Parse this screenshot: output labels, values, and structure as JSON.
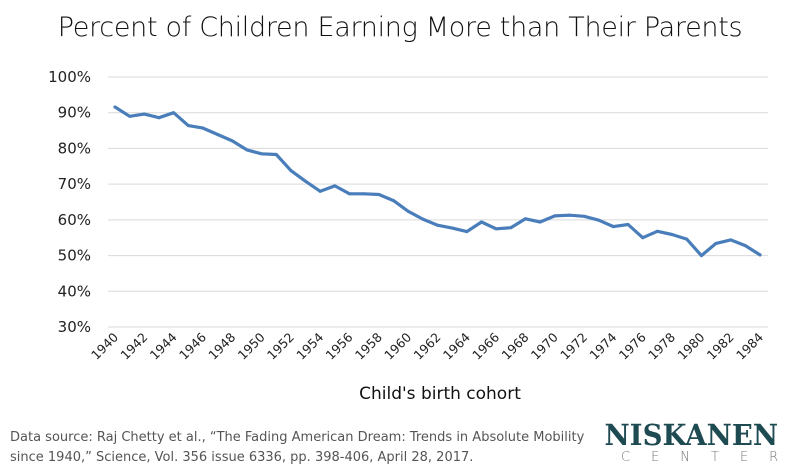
{
  "chart_data": {
    "type": "line",
    "title": "Percent of Children Earning More than Their Parents",
    "xlabel": "Child's birth cohort",
    "ylabel": "",
    "ylim": [
      30,
      100
    ],
    "yticks": [
      "100%",
      "90%",
      "80%",
      "70%",
      "60%",
      "50%",
      "40%",
      "30%"
    ],
    "ytick_values": [
      100,
      90,
      80,
      70,
      60,
      50,
      40,
      30
    ],
    "xticks": [
      "1940",
      "1942",
      "1944",
      "1946",
      "1948",
      "1950",
      "1952",
      "1954",
      "1956",
      "1958",
      "1960",
      "1962",
      "1964",
      "1966",
      "1968",
      "1970",
      "1972",
      "1974",
      "1976",
      "1978",
      "1980",
      "1982",
      "1984"
    ],
    "grid": "horizontal",
    "line_color": "#4a7ebb",
    "series": [
      {
        "x": [
          1940,
          1941,
          1942,
          1943,
          1944,
          1945,
          1946,
          1947,
          1948,
          1949,
          1950,
          1951,
          1952,
          1953,
          1954,
          1955,
          1956,
          1957,
          1958,
          1959,
          1960,
          1961,
          1962,
          1963,
          1964,
          1965,
          1966,
          1967,
          1968,
          1969,
          1970,
          1971,
          1972,
          1973,
          1974,
          1975,
          1976,
          1977,
          1978,
          1979,
          1980,
          1981,
          1982,
          1983,
          1984
        ],
        "values": [
          91.6,
          89.0,
          89.6,
          88.6,
          90.0,
          86.4,
          85.7,
          83.9,
          82.1,
          79.6,
          78.5,
          78.3,
          73.8,
          70.8,
          68.0,
          69.5,
          67.3,
          67.3,
          67.1,
          65.4,
          62.4,
          60.2,
          58.5,
          57.7,
          56.7,
          59.4,
          57.5,
          57.8,
          60.3,
          59.4,
          61.1,
          61.3,
          61.0,
          59.9,
          58.1,
          58.7,
          55.0,
          56.8,
          55.9,
          54.6,
          50.0,
          53.4,
          54.4,
          52.8,
          50.2
        ]
      }
    ]
  },
  "footer": {
    "source_line1": "Data source: Raj Chetty et al., “The Fading American Dream: Trends in Absolute Mobility",
    "source_line2": "since 1940,” Science, Vol. 356 issue 6336, pp. 398-406, April 28, 2017.",
    "logo_top": "NISKANEN",
    "logo_bottom": "CENTER",
    "logo_color": "#1e4a52"
  }
}
